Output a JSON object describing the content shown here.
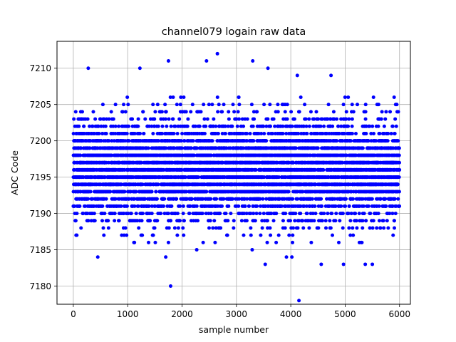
{
  "chart_data": {
    "type": "scatter",
    "title": "channel079 logain raw data",
    "xlabel": "sample number",
    "ylabel": "ADC Code",
    "xlim": [
      -300,
      6200
    ],
    "ylim": [
      7177.5,
      7213.7
    ],
    "xticks": [
      0,
      1000,
      2000,
      3000,
      4000,
      5000,
      6000
    ],
    "yticks": [
      7180,
      7185,
      7190,
      7195,
      7200,
      7205,
      7210
    ],
    "grid": true,
    "marker": "circle",
    "series": [
      {
        "color": "#0000ff",
        "n_points": 6000,
        "x_range": [
          0,
          5999
        ],
        "y_dense_range": [
          7186,
          7206
        ],
        "y_center": 7196,
        "outliers": [
          {
            "x": 275,
            "y": 7210
          },
          {
            "x": 1225,
            "y": 7210
          },
          {
            "x": 1750,
            "y": 7211
          },
          {
            "x": 1790,
            "y": 7180
          },
          {
            "x": 1700,
            "y": 7184
          },
          {
            "x": 2450,
            "y": 7211
          },
          {
            "x": 2650,
            "y": 7212
          },
          {
            "x": 3300,
            "y": 7211
          },
          {
            "x": 3580,
            "y": 7210
          },
          {
            "x": 4120,
            "y": 7209
          },
          {
            "x": 4150,
            "y": 7178
          },
          {
            "x": 450,
            "y": 7184
          },
          {
            "x": 3530,
            "y": 7183
          },
          {
            "x": 3920,
            "y": 7184
          },
          {
            "x": 4020,
            "y": 7184
          },
          {
            "x": 4560,
            "y": 7183
          },
          {
            "x": 4970,
            "y": 7183
          },
          {
            "x": 5500,
            "y": 7183
          },
          {
            "x": 5370,
            "y": 7183
          },
          {
            "x": 2270,
            "y": 7185
          },
          {
            "x": 3290,
            "y": 7185
          },
          {
            "x": 4740,
            "y": 7209
          }
        ]
      }
    ]
  }
}
